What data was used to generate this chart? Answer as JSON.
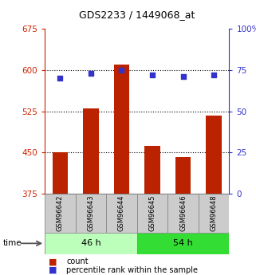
{
  "title": "GDS2233 / 1449068_at",
  "categories": [
    "GSM96642",
    "GSM96643",
    "GSM96644",
    "GSM96645",
    "GSM96646",
    "GSM96648"
  ],
  "bar_values": [
    450,
    530,
    610,
    463,
    442,
    518
  ],
  "percentile_values": [
    70,
    73,
    75,
    72,
    71,
    72
  ],
  "bar_color": "#bb2200",
  "dot_color": "#3333cc",
  "left_ylim": [
    375,
    675
  ],
  "right_ylim": [
    0,
    100
  ],
  "left_yticks": [
    375,
    450,
    525,
    600,
    675
  ],
  "right_yticks": [
    0,
    25,
    50,
    75,
    100
  ],
  "right_yticklabels": [
    "0",
    "25",
    "50",
    "75",
    "100%"
  ],
  "hlines": [
    450,
    525,
    600
  ],
  "groups": [
    {
      "label": "46 h",
      "indices": [
        0,
        1,
        2
      ],
      "color": "#bbffbb"
    },
    {
      "label": "54 h",
      "indices": [
        3,
        4,
        5
      ],
      "color": "#33dd33"
    }
  ],
  "time_label": "time",
  "legend_bar_label": "count",
  "legend_dot_label": "percentile rank within the sample",
  "bar_width": 0.5,
  "figsize": [
    3.21,
    3.45
  ],
  "dpi": 100
}
